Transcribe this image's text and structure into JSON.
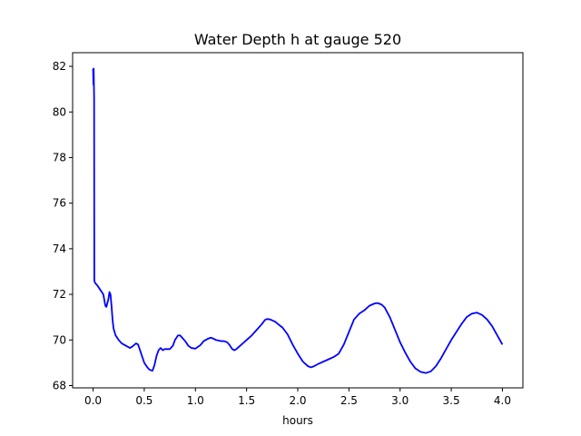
{
  "chart_data": {
    "type": "line",
    "title": "Water Depth h at gauge 520",
    "xlabel": "hours",
    "ylabel": "",
    "xlim": [
      -0.2,
      4.2
    ],
    "ylim": [
      67.9,
      82.6
    ],
    "xticks": [
      0.0,
      0.5,
      1.0,
      1.5,
      2.0,
      2.5,
      3.0,
      3.5,
      4.0
    ],
    "xtick_labels": [
      "0.0",
      "0.5",
      "1.0",
      "1.5",
      "2.0",
      "2.5",
      "3.0",
      "3.5",
      "4.0"
    ],
    "yticks": [
      68,
      70,
      72,
      74,
      76,
      78,
      80,
      82
    ],
    "ytick_labels": [
      "68",
      "70",
      "72",
      "74",
      "76",
      "78",
      "80",
      "82"
    ],
    "grid": false,
    "line_color": "#0000ff",
    "series": [
      {
        "x": [
          0.0,
          0.003,
          0.006,
          0.01,
          0.012,
          0.02,
          0.04,
          0.07,
          0.1,
          0.12,
          0.13,
          0.15,
          0.16,
          0.17,
          0.18,
          0.19,
          0.2,
          0.22,
          0.25,
          0.28,
          0.32,
          0.36,
          0.38,
          0.42,
          0.44,
          0.47,
          0.5,
          0.53,
          0.55,
          0.58,
          0.6,
          0.62,
          0.64,
          0.66,
          0.68,
          0.7,
          0.72,
          0.75,
          0.78,
          0.8,
          0.83,
          0.85,
          0.87,
          0.9,
          0.93,
          0.96,
          1.0,
          1.05,
          1.08,
          1.12,
          1.15,
          1.18,
          1.2,
          1.22,
          1.25,
          1.28,
          1.31,
          1.33,
          1.36,
          1.38,
          1.4,
          1.45,
          1.5,
          1.55,
          1.6,
          1.65,
          1.68,
          1.7,
          1.73,
          1.78,
          1.82,
          1.85,
          1.9,
          1.95,
          2.0,
          2.05,
          2.1,
          2.13,
          2.16,
          2.2,
          2.25,
          2.3,
          2.35,
          2.4,
          2.45,
          2.5,
          2.55,
          2.6,
          2.65,
          2.7,
          2.75,
          2.78,
          2.82,
          2.85,
          2.9,
          2.95,
          3.0,
          3.05,
          3.1,
          3.15,
          3.2,
          3.25,
          3.3,
          3.35,
          3.4,
          3.45,
          3.5,
          3.55,
          3.6,
          3.65,
          3.7,
          3.75,
          3.8,
          3.85,
          3.9,
          3.95,
          4.0
        ],
        "y": [
          81.9,
          81.2,
          81.9,
          80.6,
          72.6,
          72.5,
          72.4,
          72.2,
          72.0,
          71.5,
          71.45,
          71.8,
          72.1,
          72.0,
          71.5,
          70.9,
          70.5,
          70.2,
          70.0,
          69.85,
          69.75,
          69.65,
          69.7,
          69.85,
          69.8,
          69.4,
          69.0,
          68.8,
          68.7,
          68.65,
          68.9,
          69.3,
          69.55,
          69.65,
          69.55,
          69.6,
          69.6,
          69.6,
          69.75,
          70.0,
          70.2,
          70.2,
          70.1,
          69.95,
          69.75,
          69.65,
          69.62,
          69.78,
          69.95,
          70.05,
          70.1,
          70.05,
          70.0,
          69.98,
          69.95,
          69.95,
          69.9,
          69.8,
          69.6,
          69.55,
          69.6,
          69.8,
          70.0,
          70.2,
          70.45,
          70.7,
          70.88,
          70.92,
          70.9,
          70.8,
          70.65,
          70.55,
          70.25,
          69.8,
          69.4,
          69.05,
          68.85,
          68.8,
          68.85,
          68.95,
          69.05,
          69.15,
          69.25,
          69.4,
          69.8,
          70.35,
          70.9,
          71.15,
          71.3,
          71.5,
          71.6,
          71.62,
          71.55,
          71.42,
          71.0,
          70.45,
          69.9,
          69.45,
          69.05,
          68.75,
          68.6,
          68.55,
          68.62,
          68.85,
          69.2,
          69.6,
          70.0,
          70.35,
          70.7,
          71.0,
          71.15,
          71.2,
          71.1,
          70.9,
          70.6,
          70.2,
          69.8
        ]
      }
    ]
  }
}
